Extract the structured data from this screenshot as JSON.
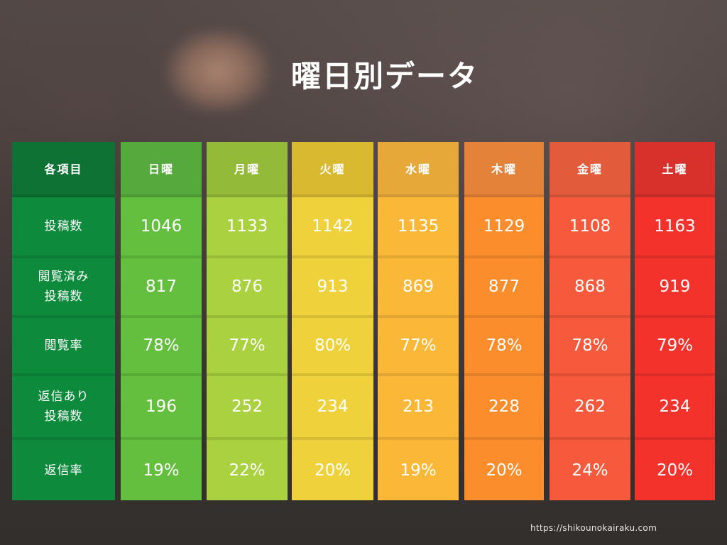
{
  "title": "曜日別データ",
  "footer_url": "https://shikounokairaku.com",
  "chart_data": {
    "type": "table",
    "title": "曜日別データ",
    "row_header_label": "各項目",
    "columns": [
      "日曜",
      "月曜",
      "火曜",
      "水曜",
      "木曜",
      "金曜",
      "土曜"
    ],
    "rows": [
      {
        "label": "投稿数",
        "values": [
          "1046",
          "1133",
          "1142",
          "1135",
          "1129",
          "1108",
          "1163"
        ]
      },
      {
        "label": "閲覧済み\n投稿数",
        "values": [
          "817",
          "876",
          "913",
          "869",
          "877",
          "868",
          "919"
        ]
      },
      {
        "label": "閲覧率",
        "values": [
          "78%",
          "77%",
          "80%",
          "77%",
          "78%",
          "78%",
          "79%"
        ]
      },
      {
        "label": "返信あり\n投稿数",
        "values": [
          "196",
          "252",
          "234",
          "213",
          "228",
          "262",
          "234"
        ]
      },
      {
        "label": "返信率",
        "values": [
          "19%",
          "22%",
          "20%",
          "19%",
          "20%",
          "24%",
          "20%"
        ]
      }
    ],
    "column_colors": {
      "label": {
        "header": "#0d7234",
        "body": "#0e8a3c"
      },
      "日曜": {
        "header": "#56a93c",
        "body": "#63bf3d"
      },
      "月曜": {
        "header": "#94ba3a",
        "body": "#a9d140"
      },
      "火曜": {
        "header": "#d8b92f",
        "body": "#efd13c"
      },
      "水曜": {
        "header": "#e7a83a",
        "body": "#fbb838"
      },
      "木曜": {
        "header": "#e5823a",
        "body": "#fb8d2d"
      },
      "金曜": {
        "header": "#e25b3b",
        "body": "#f7593c"
      },
      "土曜": {
        "header": "#d8312b",
        "body": "#f3322c"
      }
    }
  }
}
